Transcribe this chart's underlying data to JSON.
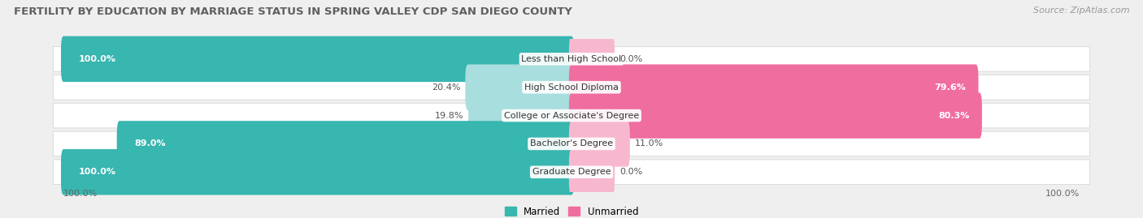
{
  "title": "FERTILITY BY EDUCATION BY MARRIAGE STATUS IN SPRING VALLEY CDP SAN DIEGO COUNTY",
  "source": "Source: ZipAtlas.com",
  "categories": [
    "Less than High School",
    "High School Diploma",
    "College or Associate's Degree",
    "Bachelor's Degree",
    "Graduate Degree"
  ],
  "married": [
    100.0,
    20.4,
    19.8,
    89.0,
    100.0
  ],
  "unmarried": [
    0.0,
    79.6,
    80.3,
    11.0,
    0.0
  ],
  "married_color": "#38b6b0",
  "unmarried_color": "#f06da0",
  "married_light": "#a8dedd",
  "unmarried_light": "#f7b8cf",
  "bg_color": "#efefef",
  "title_fontsize": 9.5,
  "source_fontsize": 8,
  "label_fontsize": 8,
  "value_fontsize": 8,
  "tick_fontsize": 8
}
